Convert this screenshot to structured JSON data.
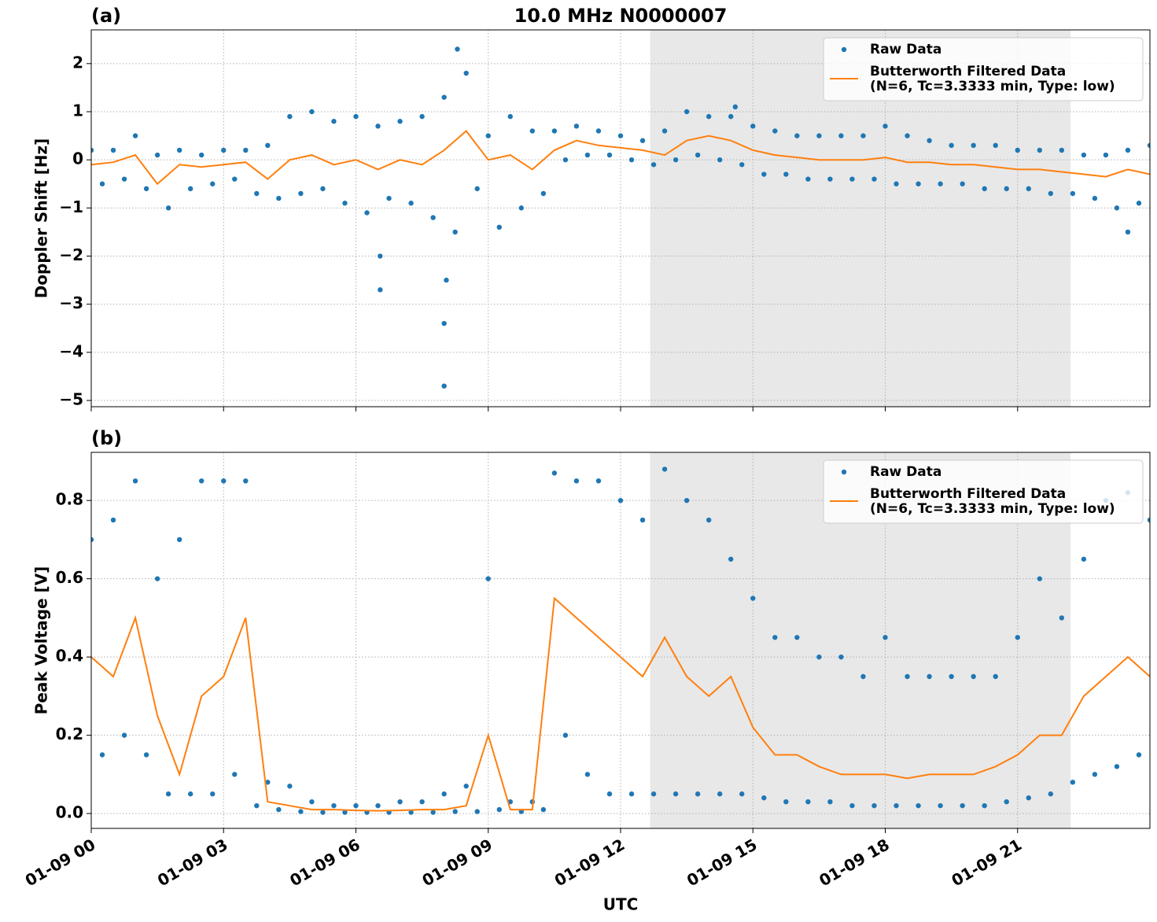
{
  "chart_data": [
    {
      "type": "scatter-line",
      "title": "10.0 MHz N0000007",
      "panel_label": "(a)",
      "ylabel": "Doppler Shift [Hz]",
      "xlim": [
        0,
        24
      ],
      "ylim": [
        -5.13,
        2.7
      ],
      "grid": true,
      "legend": "upper right",
      "show_xtick_labels": false,
      "shaded_span": [
        12.67,
        22.2
      ],
      "shade_color": "#e8e8e8",
      "xticks": [
        {
          "value": 0,
          "label": "01-09 00"
        },
        {
          "value": 3,
          "label": "01-09 03"
        },
        {
          "value": 6,
          "label": "01-09 06"
        },
        {
          "value": 9,
          "label": "01-09 09"
        },
        {
          "value": 12,
          "label": "01-09 12"
        },
        {
          "value": 15,
          "label": "01-09 15"
        },
        {
          "value": 18,
          "label": "01-09 18"
        },
        {
          "value": 21,
          "label": "01-09 21"
        }
      ],
      "yticks": [
        {
          "value": -5,
          "label": "−5"
        },
        {
          "value": -4,
          "label": "−4"
        },
        {
          "value": -3,
          "label": "−3"
        },
        {
          "value": -2,
          "label": "−2"
        },
        {
          "value": -1,
          "label": "−1"
        },
        0,
        1,
        2
      ],
      "series": [
        {
          "name": "Raw Data",
          "kind": "scatter",
          "color": "#1f77b4",
          "x": [
            0,
            0.25,
            0.5,
            0.75,
            1,
            1.25,
            1.5,
            1.75,
            2,
            2.25,
            2.5,
            2.75,
            3,
            3.25,
            3.5,
            3.75,
            4,
            4.25,
            4.5,
            4.75,
            5,
            5.25,
            5.5,
            5.75,
            6,
            6.25,
            6.5,
            6.75,
            7,
            7.25,
            7.5,
            7.75,
            8,
            8.25,
            8.5,
            8.75,
            9,
            9.25,
            9.5,
            9.75,
            10,
            10.25,
            10.5,
            10.75,
            11,
            11.25,
            11.5,
            11.75,
            12,
            12.25,
            12.5,
            12.75,
            13,
            13.25,
            13.5,
            13.75,
            14,
            14.25,
            14.5,
            14.75,
            15,
            15.25,
            15.5,
            15.75,
            16,
            16.25,
            16.5,
            16.75,
            17,
            17.25,
            17.5,
            17.75,
            18,
            18.25,
            18.5,
            18.75,
            19,
            19.25,
            19.5,
            19.75,
            20,
            20.25,
            20.5,
            20.75,
            21,
            21.25,
            21.5,
            21.75,
            22,
            22.25,
            22.5,
            22.75,
            23,
            23.25,
            23.5,
            23.75,
            24,
            8.0,
            8.0,
            8.05,
            6.55,
            6.55,
            8.3,
            14.6,
            23.5
          ],
          "values": [
            0.2,
            -0.5,
            0.2,
            -0.4,
            0.5,
            -0.6,
            0.1,
            -1.0,
            0.2,
            -0.6,
            0.1,
            -0.5,
            0.2,
            -0.4,
            0.2,
            -0.7,
            0.3,
            -0.8,
            0.9,
            -0.7,
            1.0,
            -0.6,
            0.8,
            -0.9,
            0.9,
            -1.1,
            0.7,
            -0.8,
            0.8,
            -0.9,
            0.9,
            -1.2,
            1.3,
            -1.5,
            1.8,
            -0.6,
            0.5,
            -1.4,
            0.9,
            -1.0,
            0.6,
            -0.7,
            0.6,
            0.0,
            0.7,
            0.1,
            0.6,
            0.1,
            0.5,
            0.0,
            0.4,
            -0.1,
            0.6,
            0.0,
            1.0,
            0.1,
            0.9,
            0.0,
            0.9,
            -0.1,
            0.7,
            -0.3,
            0.6,
            -0.3,
            0.5,
            -0.4,
            0.5,
            -0.4,
            0.5,
            -0.4,
            0.5,
            -0.4,
            0.7,
            -0.5,
            0.5,
            -0.5,
            0.4,
            -0.5,
            0.3,
            -0.5,
            0.3,
            -0.6,
            0.3,
            -0.6,
            0.2,
            -0.6,
            0.2,
            -0.7,
            0.2,
            -0.7,
            0.1,
            -0.8,
            0.1,
            -1.0,
            0.2,
            -0.9,
            0.3,
            -4.7,
            -3.4,
            -2.5,
            -2.0,
            -2.7,
            2.3,
            1.1,
            -1.5
          ]
        },
        {
          "name": "Butterworth Filtered Data\n(N=6, Tc=3.3333 min, Type: low)",
          "kind": "line",
          "color": "#ff7f0e",
          "x": [
            0,
            0.5,
            1,
            1.5,
            2,
            2.5,
            3,
            3.5,
            4,
            4.5,
            5,
            5.5,
            6,
            6.5,
            7,
            7.5,
            8,
            8.5,
            9,
            9.5,
            10,
            10.5,
            11,
            11.5,
            12,
            12.5,
            13,
            13.5,
            14,
            14.5,
            15,
            15.5,
            16,
            16.5,
            17,
            17.5,
            18,
            18.5,
            19,
            19.5,
            20,
            20.5,
            21,
            21.5,
            22,
            22.5,
            23,
            23.5,
            24
          ],
          "values": [
            -0.1,
            -0.05,
            0.1,
            -0.5,
            -0.1,
            -0.15,
            -0.1,
            -0.05,
            -0.4,
            0.0,
            0.1,
            -0.1,
            0.0,
            -0.2,
            0.0,
            -0.1,
            0.2,
            0.6,
            0.0,
            0.1,
            -0.2,
            0.2,
            0.4,
            0.3,
            0.25,
            0.2,
            0.1,
            0.4,
            0.5,
            0.4,
            0.2,
            0.1,
            0.05,
            0.0,
            0.0,
            0.0,
            0.05,
            -0.05,
            -0.05,
            -0.1,
            -0.1,
            -0.15,
            -0.2,
            -0.2,
            -0.25,
            -0.3,
            -0.35,
            -0.2,
            -0.3
          ]
        }
      ]
    },
    {
      "type": "scatter-line",
      "panel_label": "(b)",
      "ylabel": "Peak Voltage [V]",
      "xlabel": "UTC",
      "xlim": [
        0,
        24
      ],
      "ylim": [
        -0.038,
        0.923
      ],
      "grid": true,
      "legend": "upper right",
      "show_xtick_labels": true,
      "shaded_span": [
        12.67,
        22.2
      ],
      "shade_color": "#e8e8e8",
      "xticks": [
        {
          "value": 0,
          "label": "01-09 00"
        },
        {
          "value": 3,
          "label": "01-09 03"
        },
        {
          "value": 6,
          "label": "01-09 06"
        },
        {
          "value": 9,
          "label": "01-09 09"
        },
        {
          "value": 12,
          "label": "01-09 12"
        },
        {
          "value": 15,
          "label": "01-09 15"
        },
        {
          "value": 18,
          "label": "01-09 18"
        },
        {
          "value": 21,
          "label": "01-09 21"
        }
      ],
      "yticks": [
        {
          "value": 0,
          "label": "0.0"
        },
        0.2,
        0.4,
        0.6,
        0.8
      ],
      "series": [
        {
          "name": "Raw Data",
          "kind": "scatter",
          "color": "#1f77b4",
          "x": [
            0,
            0.25,
            0.5,
            0.75,
            1,
            1.25,
            1.5,
            1.75,
            2,
            2.25,
            2.5,
            2.75,
            3,
            3.25,
            3.5,
            3.75,
            4,
            4.25,
            4.5,
            4.75,
            5,
            5.25,
            5.5,
            5.75,
            6,
            6.25,
            6.5,
            6.75,
            7,
            7.25,
            7.5,
            7.75,
            8,
            8.25,
            8.5,
            8.75,
            9,
            9.25,
            9.5,
            9.75,
            10,
            10.25,
            10.5,
            10.75,
            11,
            11.25,
            11.5,
            11.75,
            12,
            12.25,
            12.5,
            12.75,
            13,
            13.25,
            13.5,
            13.75,
            14,
            14.25,
            14.5,
            14.75,
            15,
            15.25,
            15.5,
            15.75,
            16,
            16.25,
            16.5,
            16.75,
            17,
            17.25,
            17.5,
            17.75,
            18,
            18.25,
            18.5,
            18.75,
            19,
            19.25,
            19.5,
            19.75,
            20,
            20.25,
            20.5,
            20.75,
            21,
            21.25,
            21.5,
            21.75,
            22,
            22.25,
            22.5,
            22.75,
            23,
            23.25,
            23.5,
            23.75,
            24
          ],
          "values": [
            0.7,
            0.15,
            0.75,
            0.2,
            0.85,
            0.15,
            0.6,
            0.05,
            0.7,
            0.05,
            0.85,
            0.05,
            0.85,
            0.1,
            0.85,
            0.02,
            0.08,
            0.01,
            0.07,
            0.005,
            0.03,
            0.003,
            0.02,
            0.003,
            0.02,
            0.003,
            0.02,
            0.003,
            0.03,
            0.003,
            0.03,
            0.003,
            0.05,
            0.005,
            0.07,
            0.005,
            0.6,
            0.01,
            0.03,
            0.005,
            0.03,
            0.01,
            0.87,
            0.2,
            0.85,
            0.1,
            0.85,
            0.05,
            0.8,
            0.05,
            0.75,
            0.05,
            0.88,
            0.05,
            0.8,
            0.05,
            0.75,
            0.05,
            0.65,
            0.05,
            0.55,
            0.04,
            0.45,
            0.03,
            0.45,
            0.03,
            0.4,
            0.03,
            0.4,
            0.02,
            0.35,
            0.02,
            0.45,
            0.02,
            0.35,
            0.02,
            0.35,
            0.02,
            0.35,
            0.02,
            0.35,
            0.02,
            0.35,
            0.03,
            0.45,
            0.04,
            0.6,
            0.05,
            0.5,
            0.08,
            0.65,
            0.1,
            0.8,
            0.12,
            0.82,
            0.15,
            0.75
          ]
        },
        {
          "name": "Butterworth Filtered Data\n(N=6, Tc=3.3333 min, Type: low)",
          "kind": "line",
          "color": "#ff7f0e",
          "x": [
            0,
            0.5,
            1,
            1.5,
            2,
            2.5,
            3,
            3.5,
            4,
            4.5,
            5,
            5.5,
            6,
            6.5,
            7,
            7.5,
            8,
            8.5,
            9,
            9.5,
            10,
            10.5,
            11,
            11.5,
            12,
            12.5,
            13,
            13.5,
            14,
            14.5,
            15,
            15.5,
            16,
            16.5,
            17,
            17.5,
            18,
            18.5,
            19,
            19.5,
            20,
            20.5,
            21,
            21.5,
            22,
            22.5,
            23,
            23.5,
            24
          ],
          "values": [
            0.4,
            0.35,
            0.5,
            0.25,
            0.1,
            0.3,
            0.35,
            0.5,
            0.03,
            0.02,
            0.01,
            0.01,
            0.008,
            0.007,
            0.008,
            0.01,
            0.01,
            0.02,
            0.2,
            0.01,
            0.01,
            0.55,
            0.5,
            0.45,
            0.4,
            0.35,
            0.45,
            0.35,
            0.3,
            0.35,
            0.22,
            0.15,
            0.15,
            0.12,
            0.1,
            0.1,
            0.1,
            0.09,
            0.1,
            0.1,
            0.1,
            0.12,
            0.15,
            0.2,
            0.2,
            0.3,
            0.35,
            0.4,
            0.35
          ]
        }
      ]
    }
  ]
}
